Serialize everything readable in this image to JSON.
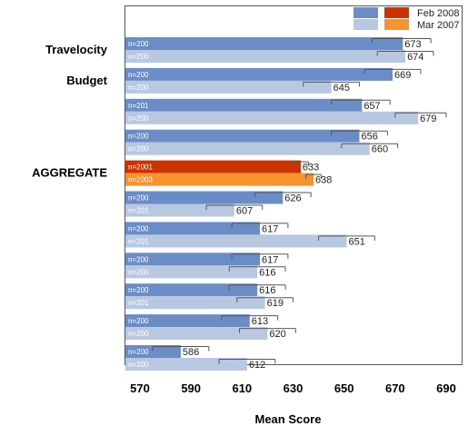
{
  "colors": {
    "feb2008_default": "#6a8cc7",
    "mar2007_default": "#b9c8e1",
    "feb2008_highlight": "#cc3300",
    "mar2007_highlight": "#f7942b",
    "error_bar": "#555555",
    "frame": "#555555"
  },
  "chart_data": {
    "type": "bar",
    "orientation": "horizontal",
    "xlabel": "Mean Score",
    "xlim": [
      570,
      690
    ],
    "xticks": [
      "570",
      "590",
      "610",
      "630",
      "650",
      "670",
      "690"
    ],
    "legend": {
      "placement": "top-right",
      "entries": [
        "Feb 2008",
        "Mar 2007"
      ]
    },
    "grid": false,
    "series_names": [
      "Feb 2008",
      "Mar 2007"
    ],
    "groups": [
      {
        "label": "Travelocity",
        "highlight": false,
        "bars": [
          {
            "value": 673,
            "n": "n=200",
            "err_lo": 661,
            "err_hi": 684
          },
          {
            "value": 674,
            "n": "n=200",
            "err_lo": 663,
            "err_hi": 685
          }
        ]
      },
      {
        "label": "Budget",
        "highlight": false,
        "bars": [
          {
            "value": 669,
            "n": "n=200",
            "err_lo": 658,
            "err_hi": 680
          },
          {
            "value": 645,
            "n": "n=200",
            "err_lo": 634,
            "err_hi": 656
          }
        ]
      },
      {
        "label": "",
        "highlight": false,
        "bars": [
          {
            "value": 657,
            "n": "n=201",
            "err_lo": 645,
            "err_hi": 668
          },
          {
            "value": 679,
            "n": "n=200",
            "err_lo": 670,
            "err_hi": 690
          }
        ]
      },
      {
        "label": "",
        "highlight": false,
        "bars": [
          {
            "value": 656,
            "n": "n=200",
            "err_lo": 645,
            "err_hi": 667
          },
          {
            "value": 660,
            "n": "n=200",
            "err_lo": 649,
            "err_hi": 671
          }
        ]
      },
      {
        "label": "AGGREGATE",
        "highlight": true,
        "bars": [
          {
            "value": 633,
            "n": "n=2001",
            "err_lo": 629,
            "err_hi": 636
          },
          {
            "value": 638,
            "n": "n=2003",
            "err_lo": 635,
            "err_hi": 641
          }
        ]
      },
      {
        "label": "",
        "highlight": false,
        "bars": [
          {
            "value": 626,
            "n": "n=200",
            "err_lo": 615,
            "err_hi": 637
          },
          {
            "value": 607,
            "n": "n=201",
            "err_lo": 596,
            "err_hi": 618
          }
        ]
      },
      {
        "label": "",
        "highlight": false,
        "bars": [
          {
            "value": 617,
            "n": "n=200",
            "err_lo": 606,
            "err_hi": 628
          },
          {
            "value": 651,
            "n": "n=201",
            "err_lo": 640,
            "err_hi": 662
          }
        ]
      },
      {
        "label": "",
        "highlight": false,
        "bars": [
          {
            "value": 617,
            "n": "n=200",
            "err_lo": 606,
            "err_hi": 628
          },
          {
            "value": 616,
            "n": "n=200",
            "err_lo": 605,
            "err_hi": 627
          }
        ]
      },
      {
        "label": "",
        "highlight": false,
        "bars": [
          {
            "value": 616,
            "n": "n=200",
            "err_lo": 605,
            "err_hi": 627
          },
          {
            "value": 619,
            "n": "n=201",
            "err_lo": 608,
            "err_hi": 630
          }
        ]
      },
      {
        "label": "",
        "highlight": false,
        "bars": [
          {
            "value": 613,
            "n": "n=200",
            "err_lo": 602,
            "err_hi": 624
          },
          {
            "value": 620,
            "n": "n=200",
            "err_lo": 609,
            "err_hi": 631
          }
        ]
      },
      {
        "label": "",
        "highlight": false,
        "bars": [
          {
            "value": 586,
            "n": "n=200",
            "err_lo": 575,
            "err_hi": 597
          },
          {
            "value": 612,
            "n": "n=200",
            "err_lo": 601,
            "err_hi": 623
          }
        ]
      }
    ]
  }
}
